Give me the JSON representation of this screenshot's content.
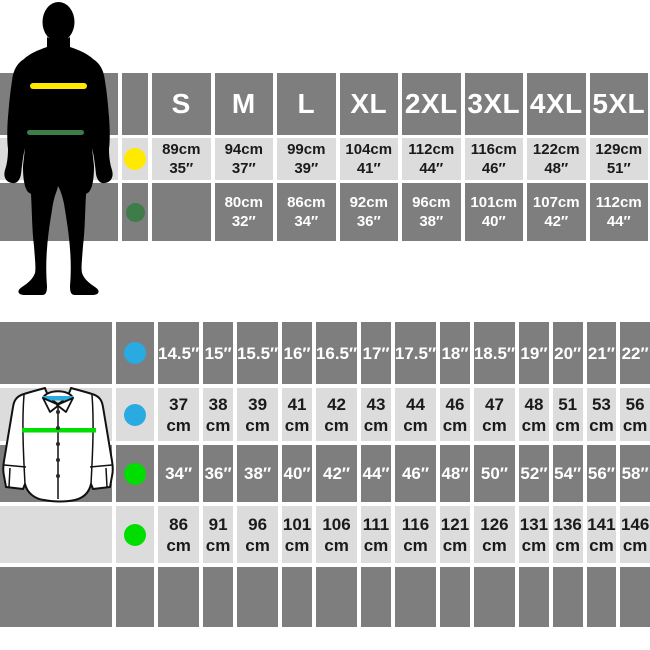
{
  "colors": {
    "dark_cell": "#7e7e7e",
    "light_cell": "#dcdcdc",
    "text_on_dark": "#ffffff",
    "text_on_light": "#1a1a1a",
    "yellow": "#ffe900",
    "dark_green": "#3e7c49",
    "blue": "#29abe2",
    "bright_green": "#00dd00",
    "silhouette": "#000000",
    "shirt_outline": "#111111"
  },
  "figures": {
    "man": {
      "lines": [
        {
          "color_key": "yellow",
          "name": "chest-line"
        },
        {
          "color_key": "dark_green",
          "name": "waist-line"
        }
      ]
    },
    "shirt": {
      "lines": [
        {
          "color_key": "blue",
          "name": "collar-line"
        },
        {
          "color_key": "bright_green",
          "name": "chest-line"
        }
      ]
    }
  },
  "top_table": {
    "sizes": [
      "S",
      "M",
      "L",
      "XL",
      "2XL",
      "3XL",
      "4XL",
      "5XL"
    ],
    "rows": [
      {
        "dot": "yellow",
        "style": "light",
        "cells": [
          [
            "89cm",
            "35″"
          ],
          [
            "94cm",
            "37″"
          ],
          [
            "99cm",
            "39″"
          ],
          [
            "104cm",
            "41″"
          ],
          [
            "112cm",
            "44″"
          ],
          [
            "116cm",
            "46″"
          ],
          [
            "122cm",
            "48″"
          ],
          [
            "129cm",
            "51″"
          ]
        ]
      },
      {
        "dot": "dark_green",
        "style": "dark",
        "cells": [
          null,
          [
            "80cm",
            "32″"
          ],
          [
            "86cm",
            "34″"
          ],
          [
            "92cm",
            "36″"
          ],
          [
            "96cm",
            "38″"
          ],
          [
            "101cm",
            "40″"
          ],
          [
            "107cm",
            "42″"
          ],
          [
            "112cm",
            "44″"
          ]
        ]
      }
    ]
  },
  "bottom_table": {
    "rows": [
      {
        "dot": "blue",
        "style": "dark",
        "cells": [
          "14.5″",
          "15″",
          "15.5″",
          "16″",
          "16.5″",
          "17″",
          "17.5″",
          "18″",
          "18.5″",
          "19″",
          "20″",
          "21″",
          "22″"
        ]
      },
      {
        "dot": "blue",
        "style": "light",
        "cells": [
          [
            "37",
            "cm"
          ],
          [
            "38",
            "cm"
          ],
          [
            "39",
            "cm"
          ],
          [
            "41",
            "cm"
          ],
          [
            "42",
            "cm"
          ],
          [
            "43",
            "cm"
          ],
          [
            "44",
            "cm"
          ],
          [
            "46",
            "cm"
          ],
          [
            "47",
            "cm"
          ],
          [
            "48",
            "cm"
          ],
          [
            "51",
            "cm"
          ],
          [
            "53",
            "cm"
          ],
          [
            "56",
            "cm"
          ]
        ]
      },
      {
        "dot": "bright_green",
        "style": "dark",
        "cells": [
          "34″",
          "36″",
          "38″",
          "40″",
          "42″",
          "44″",
          "46″",
          "48″",
          "50″",
          "52″",
          "54″",
          "56″",
          "58″"
        ]
      },
      {
        "dot": "bright_green",
        "style": "light",
        "cells": [
          [
            "86",
            "cm"
          ],
          [
            "91",
            "cm"
          ],
          [
            "96",
            "cm"
          ],
          [
            "101",
            "cm"
          ],
          [
            "106",
            "cm"
          ],
          [
            "111",
            "cm"
          ],
          [
            "116",
            "cm"
          ],
          [
            "121",
            "cm"
          ],
          [
            "126",
            "cm"
          ],
          [
            "131",
            "cm"
          ],
          [
            "136",
            "cm"
          ],
          [
            "141",
            "cm"
          ],
          [
            "146",
            "cm"
          ]
        ]
      },
      {
        "dot": null,
        "style": "dark",
        "cells": [
          null,
          null,
          null,
          null,
          null,
          null,
          null,
          null,
          null,
          null,
          null,
          null,
          null
        ]
      }
    ]
  },
  "chart_data": [
    {
      "type": "table",
      "columns": [
        "S",
        "M",
        "L",
        "XL",
        "2XL",
        "3XL",
        "4XL",
        "5XL"
      ],
      "series": [
        {
          "name": "yellow-chest-cm",
          "values": [
            89,
            94,
            99,
            104,
            112,
            116,
            122,
            129
          ]
        },
        {
          "name": "yellow-chest-in",
          "values": [
            35,
            37,
            39,
            41,
            44,
            46,
            48,
            51
          ]
        },
        {
          "name": "green-waist-cm",
          "values": [
            null,
            80,
            86,
            92,
            96,
            101,
            107,
            112
          ]
        },
        {
          "name": "green-waist-in",
          "values": [
            null,
            32,
            34,
            36,
            38,
            40,
            42,
            44
          ]
        }
      ]
    },
    {
      "type": "table",
      "series": [
        {
          "name": "blue-collar-in",
          "values": [
            14.5,
            15,
            15.5,
            16,
            16.5,
            17,
            17.5,
            18,
            18.5,
            19,
            20,
            21,
            22
          ]
        },
        {
          "name": "blue-collar-cm",
          "values": [
            37,
            38,
            39,
            41,
            42,
            43,
            44,
            46,
            47,
            48,
            51,
            53,
            56
          ]
        },
        {
          "name": "green-chest-in",
          "values": [
            34,
            36,
            38,
            40,
            42,
            44,
            46,
            48,
            50,
            52,
            54,
            56,
            58
          ]
        },
        {
          "name": "green-chest-cm",
          "values": [
            86,
            91,
            96,
            101,
            106,
            111,
            116,
            121,
            126,
            131,
            136,
            141,
            146
          ]
        }
      ]
    }
  ]
}
